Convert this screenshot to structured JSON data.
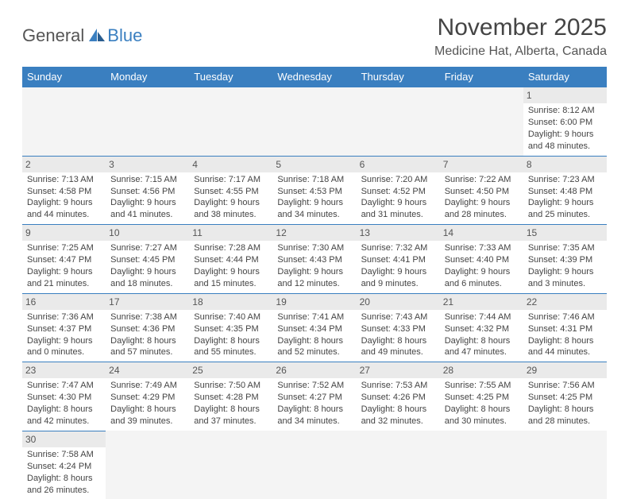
{
  "logo": {
    "part1": "General",
    "part2": "Blue"
  },
  "title": "November 2025",
  "location": "Medicine Hat, Alberta, Canada",
  "colors": {
    "header_bg": "#3a7fc0",
    "header_text": "#ffffff",
    "daynum_bg": "#eaeaea",
    "empty_bg": "#f4f4f4",
    "border": "#3a7fc0",
    "text": "#444444"
  },
  "weekdays": [
    "Sunday",
    "Monday",
    "Tuesday",
    "Wednesday",
    "Thursday",
    "Friday",
    "Saturday"
  ],
  "weeks": [
    [
      null,
      null,
      null,
      null,
      null,
      null,
      {
        "d": "1",
        "sr": "8:12 AM",
        "ss": "6:00 PM",
        "dl": "9 hours and 48 minutes."
      }
    ],
    [
      {
        "d": "2",
        "sr": "7:13 AM",
        "ss": "4:58 PM",
        "dl": "9 hours and 44 minutes."
      },
      {
        "d": "3",
        "sr": "7:15 AM",
        "ss": "4:56 PM",
        "dl": "9 hours and 41 minutes."
      },
      {
        "d": "4",
        "sr": "7:17 AM",
        "ss": "4:55 PM",
        "dl": "9 hours and 38 minutes."
      },
      {
        "d": "5",
        "sr": "7:18 AM",
        "ss": "4:53 PM",
        "dl": "9 hours and 34 minutes."
      },
      {
        "d": "6",
        "sr": "7:20 AM",
        "ss": "4:52 PM",
        "dl": "9 hours and 31 minutes."
      },
      {
        "d": "7",
        "sr": "7:22 AM",
        "ss": "4:50 PM",
        "dl": "9 hours and 28 minutes."
      },
      {
        "d": "8",
        "sr": "7:23 AM",
        "ss": "4:48 PM",
        "dl": "9 hours and 25 minutes."
      }
    ],
    [
      {
        "d": "9",
        "sr": "7:25 AM",
        "ss": "4:47 PM",
        "dl": "9 hours and 21 minutes."
      },
      {
        "d": "10",
        "sr": "7:27 AM",
        "ss": "4:45 PM",
        "dl": "9 hours and 18 minutes."
      },
      {
        "d": "11",
        "sr": "7:28 AM",
        "ss": "4:44 PM",
        "dl": "9 hours and 15 minutes."
      },
      {
        "d": "12",
        "sr": "7:30 AM",
        "ss": "4:43 PM",
        "dl": "9 hours and 12 minutes."
      },
      {
        "d": "13",
        "sr": "7:32 AM",
        "ss": "4:41 PM",
        "dl": "9 hours and 9 minutes."
      },
      {
        "d": "14",
        "sr": "7:33 AM",
        "ss": "4:40 PM",
        "dl": "9 hours and 6 minutes."
      },
      {
        "d": "15",
        "sr": "7:35 AM",
        "ss": "4:39 PM",
        "dl": "9 hours and 3 minutes."
      }
    ],
    [
      {
        "d": "16",
        "sr": "7:36 AM",
        "ss": "4:37 PM",
        "dl": "9 hours and 0 minutes."
      },
      {
        "d": "17",
        "sr": "7:38 AM",
        "ss": "4:36 PM",
        "dl": "8 hours and 57 minutes."
      },
      {
        "d": "18",
        "sr": "7:40 AM",
        "ss": "4:35 PM",
        "dl": "8 hours and 55 minutes."
      },
      {
        "d": "19",
        "sr": "7:41 AM",
        "ss": "4:34 PM",
        "dl": "8 hours and 52 minutes."
      },
      {
        "d": "20",
        "sr": "7:43 AM",
        "ss": "4:33 PM",
        "dl": "8 hours and 49 minutes."
      },
      {
        "d": "21",
        "sr": "7:44 AM",
        "ss": "4:32 PM",
        "dl": "8 hours and 47 minutes."
      },
      {
        "d": "22",
        "sr": "7:46 AM",
        "ss": "4:31 PM",
        "dl": "8 hours and 44 minutes."
      }
    ],
    [
      {
        "d": "23",
        "sr": "7:47 AM",
        "ss": "4:30 PM",
        "dl": "8 hours and 42 minutes."
      },
      {
        "d": "24",
        "sr": "7:49 AM",
        "ss": "4:29 PM",
        "dl": "8 hours and 39 minutes."
      },
      {
        "d": "25",
        "sr": "7:50 AM",
        "ss": "4:28 PM",
        "dl": "8 hours and 37 minutes."
      },
      {
        "d": "26",
        "sr": "7:52 AM",
        "ss": "4:27 PM",
        "dl": "8 hours and 34 minutes."
      },
      {
        "d": "27",
        "sr": "7:53 AM",
        "ss": "4:26 PM",
        "dl": "8 hours and 32 minutes."
      },
      {
        "d": "28",
        "sr": "7:55 AM",
        "ss": "4:25 PM",
        "dl": "8 hours and 30 minutes."
      },
      {
        "d": "29",
        "sr": "7:56 AM",
        "ss": "4:25 PM",
        "dl": "8 hours and 28 minutes."
      }
    ],
    [
      {
        "d": "30",
        "sr": "7:58 AM",
        "ss": "4:24 PM",
        "dl": "8 hours and 26 minutes."
      },
      null,
      null,
      null,
      null,
      null,
      null
    ]
  ],
  "labels": {
    "sunrise": "Sunrise:",
    "sunset": "Sunset:",
    "daylight": "Daylight:"
  }
}
